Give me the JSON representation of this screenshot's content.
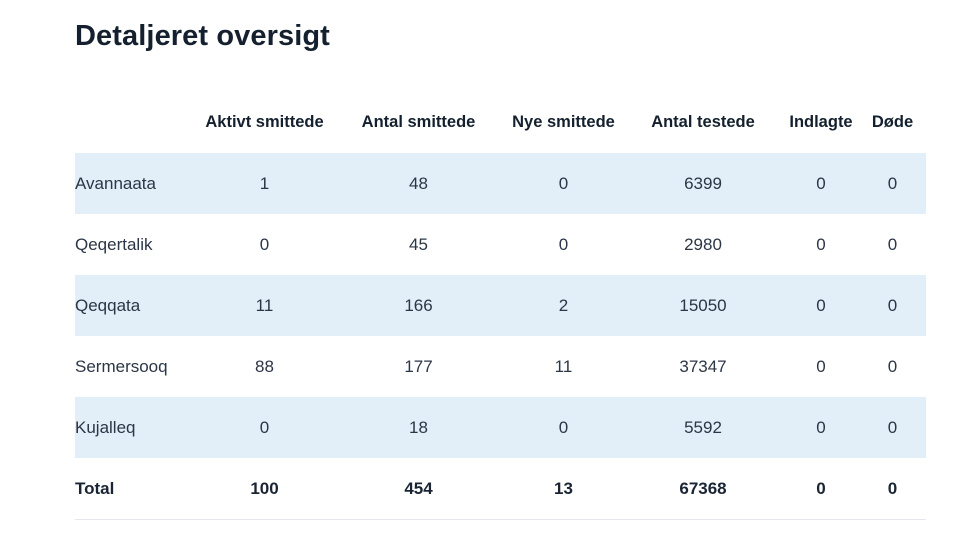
{
  "page": {
    "title": "Detaljeret oversigt"
  },
  "table": {
    "columns": [
      "",
      "Aktivt smittede",
      "Antal smittede",
      "Nye smittede",
      "Antal testede",
      "Indlagte",
      "Døde"
    ],
    "rows": [
      [
        "Avannaata",
        "1",
        "48",
        "0",
        "6399",
        "0",
        "0"
      ],
      [
        "Qeqertalik",
        "0",
        "45",
        "0",
        "2980",
        "0",
        "0"
      ],
      [
        "Qeqqata",
        "11",
        "166",
        "2",
        "15050",
        "0",
        "0"
      ],
      [
        "Sermersooq",
        "88",
        "177",
        "11",
        "37347",
        "0",
        "0"
      ],
      [
        "Kujalleq",
        "0",
        "18",
        "0",
        "5592",
        "0",
        "0"
      ]
    ],
    "total": [
      "Total",
      "100",
      "454",
      "13",
      "67368",
      "0",
      "0"
    ]
  },
  "colors": {
    "stripe": "#e2eef8",
    "text": "#1f2a3a"
  }
}
